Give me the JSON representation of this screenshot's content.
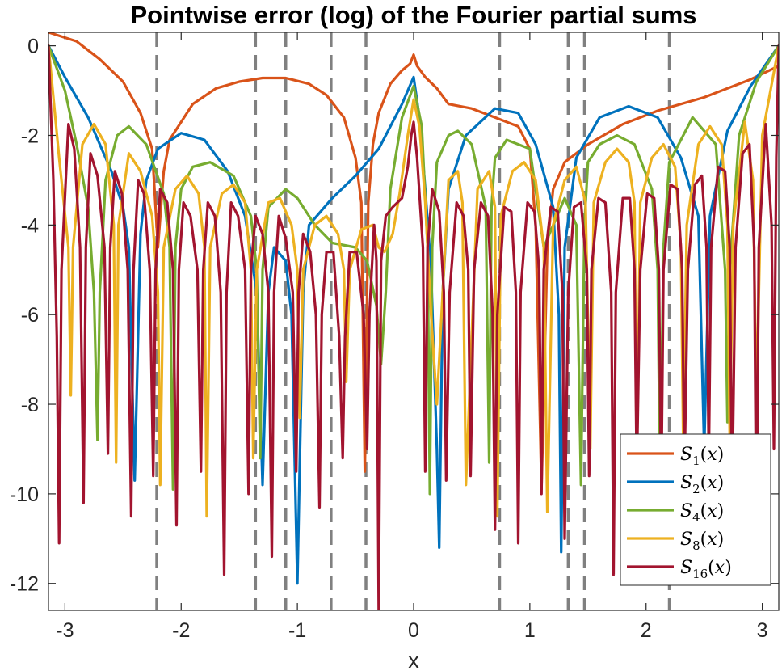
{
  "chart_data": {
    "type": "line",
    "title": "Pointwise error (log) of the Fourier partial sums",
    "xlabel": "x",
    "ylabel": "",
    "xlim": [
      -3.14159,
      3.14159
    ],
    "ylim": [
      -12.6,
      0.3
    ],
    "xticks": [
      -3,
      -2,
      -1,
      0,
      1,
      2,
      3
    ],
    "xtick_labels": [
      "-3",
      "-2",
      "-1",
      "0",
      "1",
      "2",
      "3"
    ],
    "yticks": [
      0,
      -2,
      -4,
      -6,
      -8,
      -10,
      -12
    ],
    "ytick_labels": [
      "0",
      "-2",
      "-4",
      "-6",
      "-8",
      "-10",
      "-12"
    ],
    "grid": false,
    "legend_position": "bottom-right",
    "vertical_dashed_lines": {
      "color": "#808080",
      "x": [
        -2.21,
        -1.36,
        -1.1,
        -0.71,
        -0.41,
        0.74,
        1.33,
        1.47,
        2.2
      ]
    },
    "series": [
      {
        "name": "S_1(x)",
        "base": "S",
        "sub": "1",
        "color": "#D95319",
        "x": [
          -3.1416,
          -2.9,
          -2.7,
          -2.5,
          -2.35,
          -2.25,
          -2.2,
          -2.15,
          -2.1,
          -1.9,
          -1.7,
          -1.5,
          -1.3,
          -1.1,
          -0.9,
          -0.75,
          -0.6,
          -0.5,
          -0.45,
          -0.42,
          -0.39,
          -0.35,
          -0.3,
          -0.2,
          -0.1,
          -0.03,
          0,
          0.03,
          0.1,
          0.2,
          0.3,
          0.5,
          0.7,
          0.9,
          1.0,
          1.05,
          1.1,
          1.15,
          1.2,
          1.3,
          1.5,
          1.8,
          2.1,
          2.5,
          2.9,
          3.1416
        ],
        "y": [
          0.3,
          0.1,
          -0.3,
          -0.8,
          -1.5,
          -2.3,
          -4.5,
          -2.8,
          -2.1,
          -1.3,
          -0.95,
          -0.8,
          -0.72,
          -0.72,
          -0.85,
          -1.1,
          -1.6,
          -2.5,
          -3.5,
          -9.5,
          -3.5,
          -2.2,
          -1.5,
          -0.85,
          -0.55,
          -0.4,
          -0.2,
          -0.45,
          -0.7,
          -0.95,
          -1.3,
          -1.4,
          -1.6,
          -1.8,
          -2.3,
          -4.0,
          -9.9,
          -4.5,
          -3.2,
          -2.6,
          -2.2,
          -1.75,
          -1.45,
          -1.15,
          -0.75,
          -0.45
        ]
      },
      {
        "name": "S_2(x)",
        "base": "S",
        "sub": "2",
        "color": "#0072BD",
        "x": [
          -3.1416,
          -3.0,
          -2.8,
          -2.6,
          -2.5,
          -2.45,
          -2.4,
          -2.35,
          -2.3,
          -2.2,
          -2.0,
          -1.8,
          -1.6,
          -1.45,
          -1.35,
          -1.3,
          -1.25,
          -1.2,
          -1.1,
          -1.05,
          -1.0,
          -0.95,
          -0.9,
          -0.7,
          -0.5,
          -0.3,
          -0.1,
          0.0,
          0.05,
          0.1,
          0.15,
          0.2,
          0.22,
          0.25,
          0.3,
          0.45,
          0.7,
          0.9,
          1.05,
          1.2,
          1.25,
          1.27,
          1.3,
          1.4,
          1.6,
          1.85,
          2.1,
          2.3,
          2.45,
          2.5,
          2.55,
          2.7,
          2.9,
          3.1416
        ],
        "y": [
          0.0,
          -0.7,
          -1.6,
          -2.8,
          -3.6,
          -4.5,
          -9.7,
          -4.2,
          -3.0,
          -2.3,
          -1.95,
          -2.1,
          -2.8,
          -3.8,
          -5.5,
          -9.8,
          -5.5,
          -4.5,
          -4.8,
          -6.0,
          -12.0,
          -5.5,
          -4.0,
          -3.4,
          -2.9,
          -2.3,
          -1.3,
          -0.7,
          -1.6,
          -3.2,
          -5.0,
          -9.0,
          -11.2,
          -5.5,
          -3.2,
          -2.0,
          -1.4,
          -1.5,
          -2.2,
          -3.6,
          -6.0,
          -11.3,
          -4.5,
          -2.5,
          -1.6,
          -1.35,
          -1.6,
          -2.5,
          -3.8,
          -9.0,
          -3.8,
          -1.9,
          -0.9,
          0.0
        ]
      },
      {
        "name": "S_4(x)",
        "base": "S",
        "sub": "4",
        "color": "#77AC30",
        "x": [
          -3.1416,
          -3.0,
          -2.9,
          -2.8,
          -2.75,
          -2.72,
          -2.7,
          -2.65,
          -2.55,
          -2.45,
          -2.3,
          -2.15,
          -2.1,
          -2.07,
          -2.05,
          -2.0,
          -1.9,
          -1.75,
          -1.55,
          -1.4,
          -1.35,
          -1.32,
          -1.3,
          -1.25,
          -1.1,
          -1.0,
          -0.85,
          -0.7,
          -0.5,
          -0.4,
          -0.32,
          -0.28,
          -0.24,
          -0.2,
          -0.1,
          0.0,
          0.07,
          0.12,
          0.14,
          0.16,
          0.2,
          0.3,
          0.38,
          0.5,
          0.62,
          0.65,
          0.67,
          0.7,
          0.8,
          1.0,
          1.12,
          1.3,
          1.4,
          1.44,
          1.47,
          1.5,
          1.6,
          1.75,
          1.9,
          2.05,
          2.1,
          2.12,
          2.15,
          2.2,
          2.4,
          2.6,
          2.68,
          2.7,
          2.72,
          2.8,
          2.95,
          3.1416
        ],
        "y": [
          0.0,
          -1.0,
          -2.2,
          -3.6,
          -5.5,
          -8.8,
          -5.5,
          -3.0,
          -2.0,
          -1.8,
          -2.2,
          -3.3,
          -4.5,
          -9.9,
          -4.5,
          -3.2,
          -2.7,
          -2.6,
          -2.9,
          -3.8,
          -5.0,
          -9.2,
          -5.0,
          -3.6,
          -3.2,
          -3.4,
          -4.0,
          -4.4,
          -4.5,
          -4.8,
          -5.8,
          -7.1,
          -5.5,
          -3.2,
          -1.6,
          -0.9,
          -1.8,
          -4.5,
          -10.0,
          -4.5,
          -2.6,
          -2.0,
          -1.9,
          -2.2,
          -3.6,
          -9.3,
          -3.6,
          -2.5,
          -2.1,
          -2.3,
          -4.5,
          -3.4,
          -4.0,
          -9.8,
          -4.0,
          -2.6,
          -2.2,
          -2.0,
          -2.2,
          -3.2,
          -5.0,
          -9.9,
          -4.5,
          -2.6,
          -1.6,
          -2.2,
          -5.0,
          -8.4,
          -5.0,
          -2.0,
          -0.8,
          0.0
        ]
      },
      {
        "name": "S_8(x)",
        "base": "S",
        "sub": "8",
        "color": "#EDB120",
        "x": [
          -3.1416,
          -3.05,
          -2.97,
          -2.95,
          -2.93,
          -2.85,
          -2.75,
          -2.65,
          -2.58,
          -2.56,
          -2.54,
          -2.45,
          -2.35,
          -2.25,
          -2.2,
          -2.18,
          -2.15,
          -2.05,
          -1.95,
          -1.85,
          -1.8,
          -1.78,
          -1.75,
          -1.65,
          -1.55,
          -1.45,
          -1.4,
          -1.38,
          -1.35,
          -1.25,
          -1.15,
          -1.05,
          -1.0,
          -0.98,
          -0.95,
          -0.85,
          -0.75,
          -0.65,
          -0.6,
          -0.58,
          -0.55,
          -0.45,
          -0.35,
          -0.3,
          -0.25,
          -0.18,
          -0.12,
          -0.05,
          0.0,
          0.05,
          0.1,
          0.15,
          0.2,
          0.3,
          0.38,
          0.42,
          0.45,
          0.55,
          0.65,
          0.7,
          0.72,
          0.75,
          0.85,
          0.95,
          1.05,
          1.12,
          1.15,
          1.2,
          1.3,
          1.4,
          1.48,
          1.52,
          1.55,
          1.65,
          1.75,
          1.85,
          1.9,
          1.92,
          1.95,
          2.05,
          2.15,
          2.25,
          2.3,
          2.32,
          2.35,
          2.45,
          2.55,
          2.65,
          2.7,
          2.72,
          2.75,
          2.85,
          2.92,
          2.95,
          3.0,
          3.1416
        ],
        "y": [
          0.0,
          -2.5,
          -4.5,
          -7.8,
          -4.5,
          -2.2,
          -1.75,
          -2.2,
          -4.0,
          -9.3,
          -4.0,
          -2.4,
          -2.8,
          -3.8,
          -5.5,
          -9.8,
          -4.5,
          -3.2,
          -2.9,
          -3.3,
          -4.5,
          -10.5,
          -4.5,
          -3.3,
          -3.1,
          -3.5,
          -5.0,
          -9.2,
          -5.0,
          -3.5,
          -3.4,
          -4.0,
          -5.0,
          -8.3,
          -5.0,
          -4.0,
          -3.8,
          -4.2,
          -5.0,
          -7.5,
          -5.0,
          -4.1,
          -4.0,
          -4.5,
          -4.6,
          -4.2,
          -3.3,
          -2.0,
          -1.2,
          -1.8,
          -3.5,
          -6.0,
          -8.0,
          -3.0,
          -2.8,
          -3.5,
          -9.8,
          -3.2,
          -2.8,
          -3.6,
          -10.5,
          -3.8,
          -2.8,
          -2.6,
          -3.0,
          -4.5,
          -10.4,
          -4.0,
          -3.0,
          -2.7,
          -3.5,
          -9.0,
          -3.5,
          -2.6,
          -2.3,
          -2.6,
          -3.5,
          -9.5,
          -3.5,
          -2.5,
          -2.2,
          -2.7,
          -4.5,
          -9.0,
          -4.0,
          -2.2,
          -1.8,
          -2.2,
          -4.0,
          -8.8,
          -4.0,
          -1.7,
          -3.0,
          -8.0,
          -2.0,
          0.0
        ]
      },
      {
        "name": "S_16(x)",
        "base": "S",
        "sub": "16",
        "color": "#A2142F",
        "x": [
          -3.1416,
          -3.1,
          -3.07,
          -3.05,
          -3.03,
          -2.97,
          -2.92,
          -2.87,
          -2.84,
          -2.82,
          -2.78,
          -2.72,
          -2.66,
          -2.63,
          -2.61,
          -2.57,
          -2.51,
          -2.46,
          -2.43,
          -2.41,
          -2.37,
          -2.32,
          -2.27,
          -2.24,
          -2.22,
          -2.18,
          -2.12,
          -2.07,
          -2.04,
          -2.02,
          -1.98,
          -1.92,
          -1.86,
          -1.83,
          -1.81,
          -1.77,
          -1.71,
          -1.66,
          -1.63,
          -1.61,
          -1.57,
          -1.51,
          -1.45,
          -1.42,
          -1.4,
          -1.36,
          -1.3,
          -1.25,
          -1.22,
          -1.2,
          -1.16,
          -1.1,
          -1.04,
          -1.01,
          -0.99,
          -0.95,
          -0.89,
          -0.84,
          -0.81,
          -0.79,
          -0.75,
          -0.69,
          -0.64,
          -0.61,
          -0.59,
          -0.55,
          -0.49,
          -0.43,
          -0.4,
          -0.38,
          -0.34,
          -0.32,
          -0.3,
          -0.28,
          -0.24,
          -0.18,
          -0.1,
          -0.05,
          -0.02,
          0.0,
          0.03,
          0.08,
          0.1,
          0.12,
          0.16,
          0.22,
          0.26,
          0.28,
          0.31,
          0.37,
          0.43,
          0.47,
          0.49,
          0.52,
          0.58,
          0.64,
          0.68,
          0.7,
          0.72,
          0.78,
          0.84,
          0.88,
          0.9,
          0.92,
          0.98,
          1.04,
          1.08,
          1.1,
          1.12,
          1.18,
          1.24,
          1.28,
          1.3,
          1.33,
          1.38,
          1.44,
          1.49,
          1.51,
          1.53,
          1.59,
          1.65,
          1.7,
          1.72,
          1.74,
          1.8,
          1.86,
          1.9,
          1.92,
          1.95,
          2.01,
          2.07,
          2.11,
          2.13,
          2.15,
          2.21,
          2.27,
          2.31,
          2.33,
          2.36,
          2.42,
          2.48,
          2.52,
          2.54,
          2.56,
          2.62,
          2.68,
          2.72,
          2.74,
          2.77,
          2.83,
          2.89,
          2.93,
          2.95,
          2.97,
          3.03,
          3.08,
          3.1,
          3.12,
          3.1416
        ],
        "y": [
          0.0,
          -3.0,
          -6.5,
          -11.1,
          -5.0,
          -1.75,
          -2.3,
          -4.5,
          -10.2,
          -4.5,
          -2.4,
          -2.9,
          -4.5,
          -9.1,
          -4.5,
          -2.8,
          -3.3,
          -5.0,
          -10.5,
          -5.0,
          -3.0,
          -3.3,
          -5.0,
          -9.6,
          -5.0,
          -3.2,
          -3.5,
          -5.0,
          -10.7,
          -5.0,
          -3.5,
          -3.8,
          -5.0,
          -9.5,
          -5.0,
          -3.5,
          -3.8,
          -5.5,
          -11.8,
          -5.5,
          -3.5,
          -3.8,
          -5.0,
          -10.0,
          -5.0,
          -3.8,
          -4.2,
          -5.5,
          -11.4,
          -5.5,
          -3.8,
          -4.3,
          -5.5,
          -9.5,
          -5.5,
          -4.2,
          -4.6,
          -6.0,
          -10.3,
          -6.0,
          -4.6,
          -4.6,
          -6.5,
          -9.2,
          -6.5,
          -4.6,
          -4.6,
          -6.0,
          -9.0,
          -6.0,
          -4.0,
          -4.8,
          -12.6,
          -4.8,
          -3.8,
          -3.6,
          -3.4,
          -2.7,
          -2.0,
          -1.7,
          -2.5,
          -4.5,
          -9.5,
          -4.5,
          -3.2,
          -3.7,
          -5.5,
          -9.7,
          -5.5,
          -3.5,
          -3.8,
          -5.0,
          -9.6,
          -5.0,
          -3.5,
          -3.8,
          -6.0,
          -10.8,
          -6.0,
          -3.6,
          -3.7,
          -5.5,
          -11.1,
          -5.5,
          -3.5,
          -3.7,
          -5.0,
          -10.0,
          -5.0,
          -3.6,
          -3.7,
          -5.5,
          -11.0,
          -5.5,
          -3.6,
          -3.5,
          -5.0,
          -9.6,
          -5.0,
          -3.4,
          -3.5,
          -5.5,
          -11.8,
          -5.5,
          -3.4,
          -3.4,
          -5.0,
          -9.6,
          -5.0,
          -3.3,
          -3.4,
          -5.0,
          -10.1,
          -5.0,
          -3.1,
          -3.2,
          -5.0,
          -9.6,
          -5.0,
          -3.1,
          -2.9,
          -4.5,
          -9.3,
          -4.5,
          -2.7,
          -2.8,
          -4.5,
          -10.2,
          -4.5,
          -2.4,
          -2.2,
          -4.5,
          -11.1,
          -4.5,
          -1.75,
          -4.0,
          -9.0,
          -2.5,
          0.0
        ]
      }
    ]
  }
}
